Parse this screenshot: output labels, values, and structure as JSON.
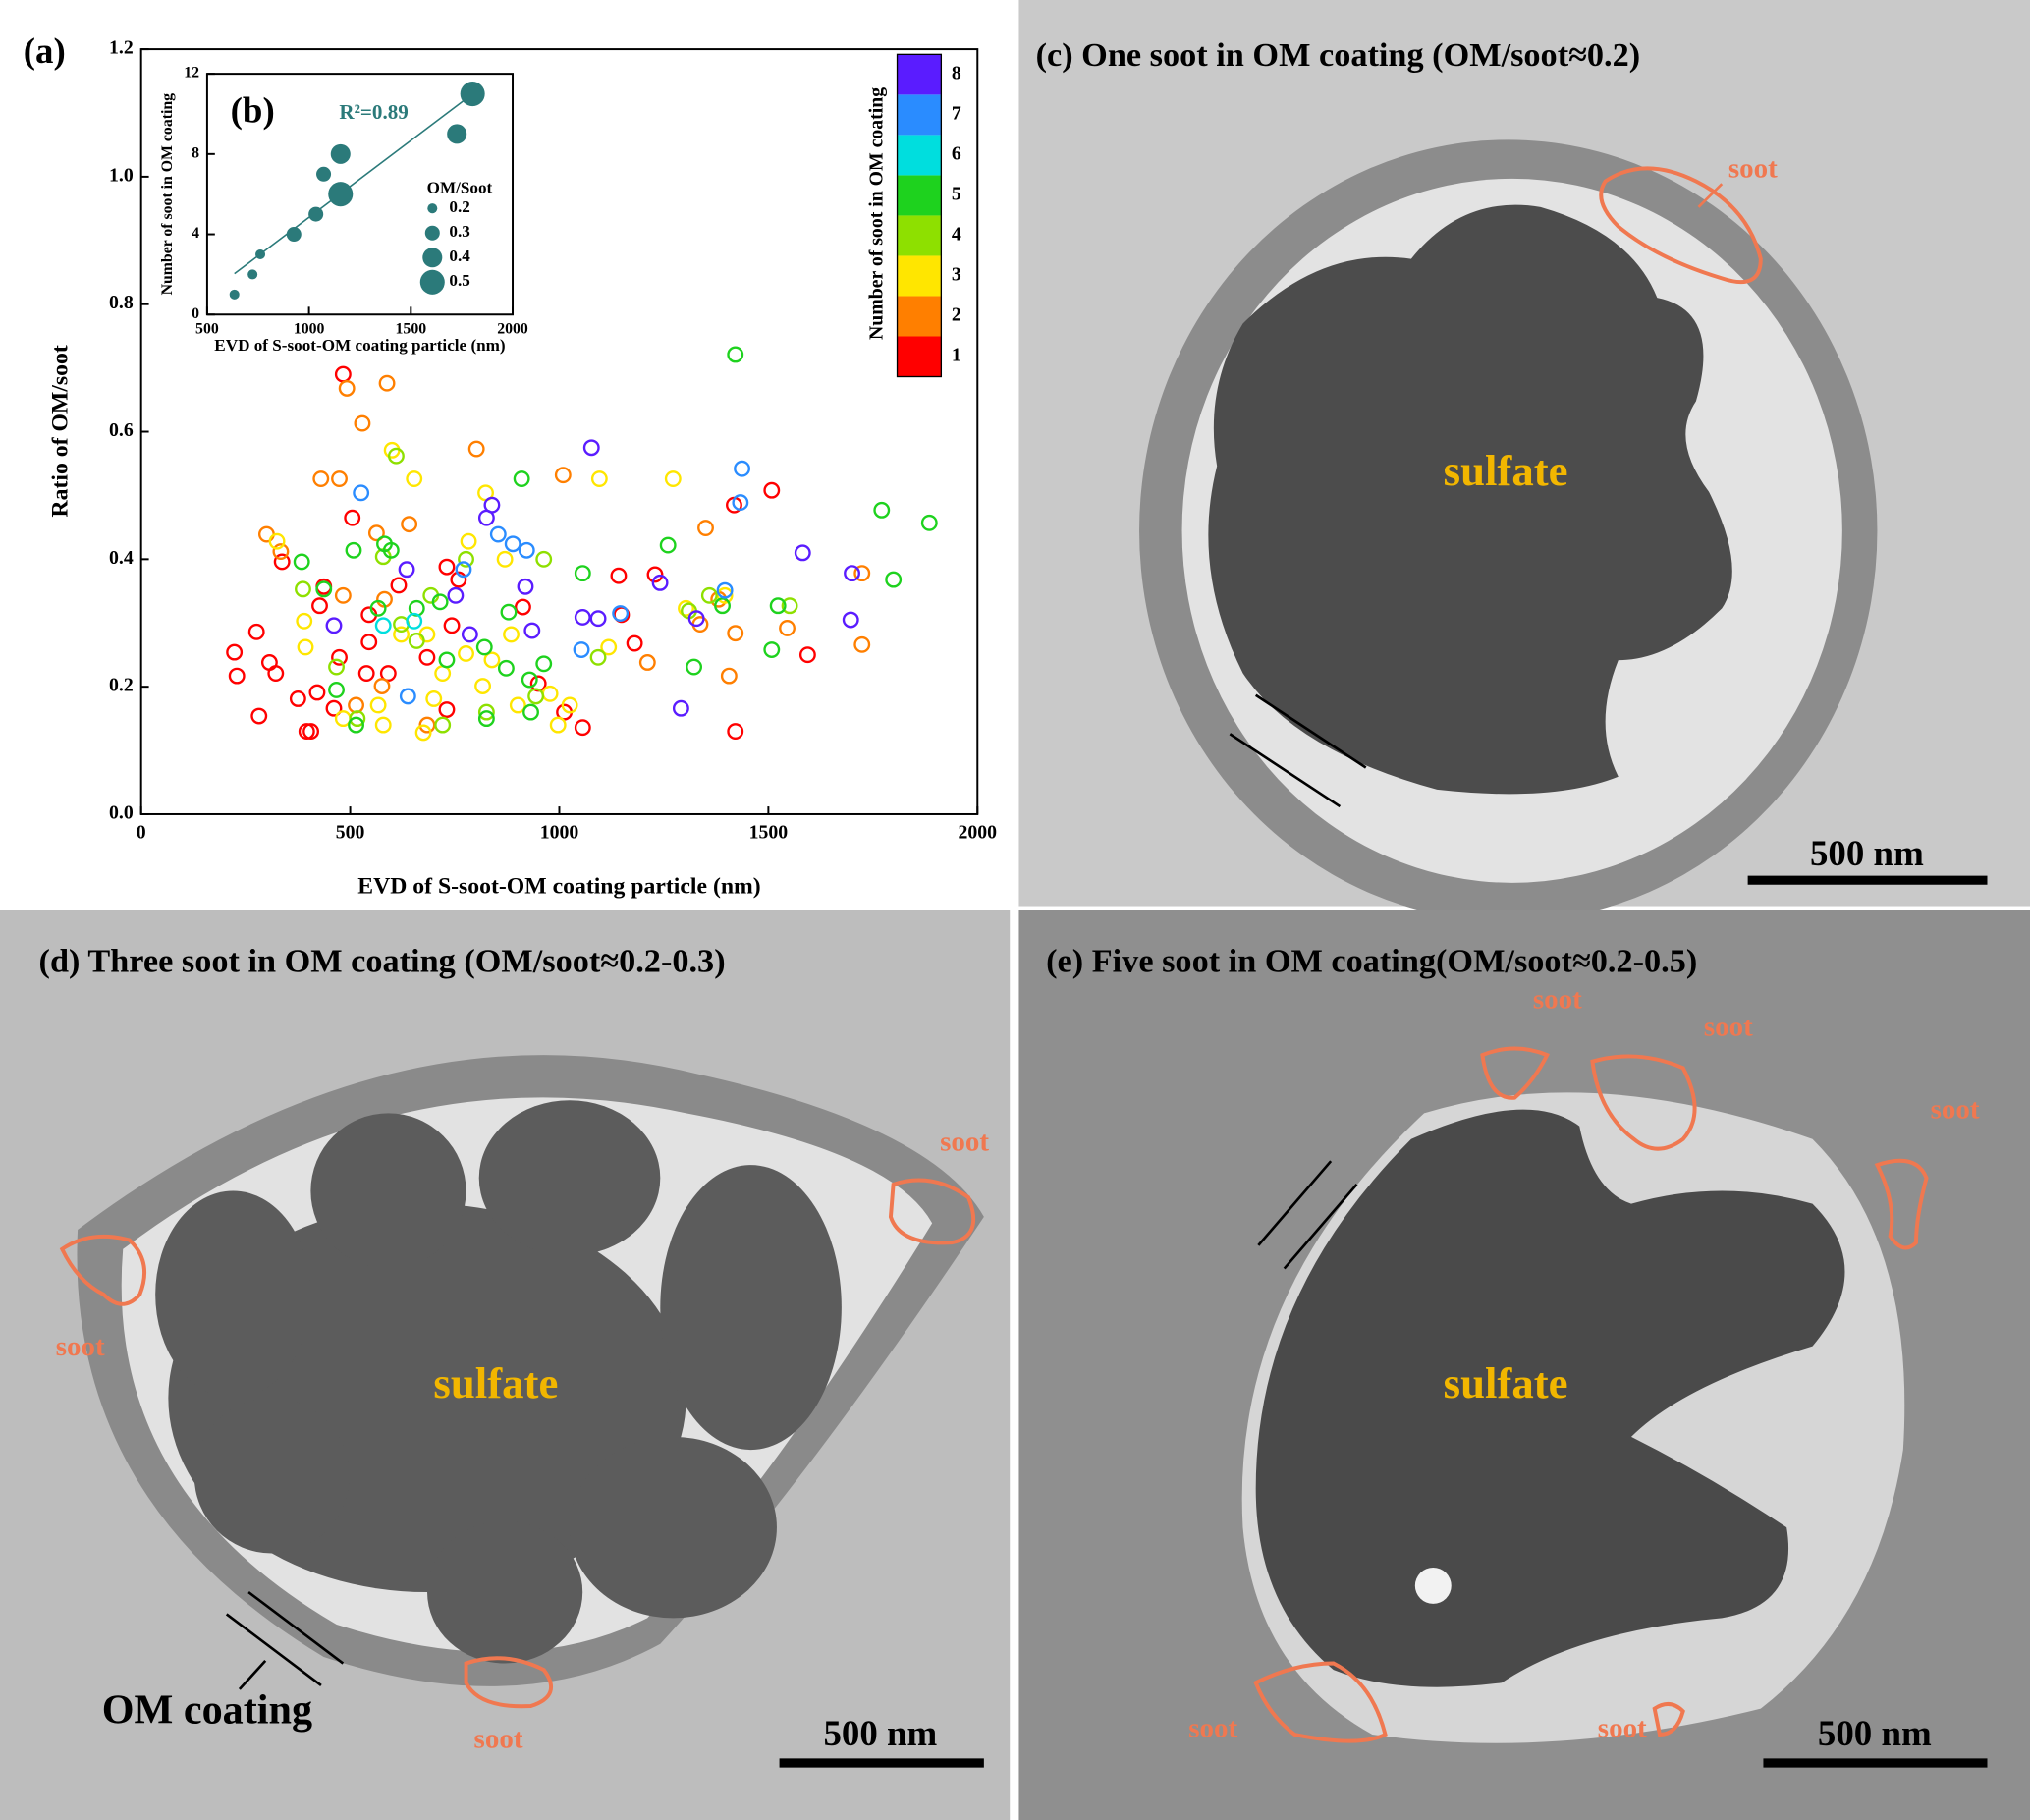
{
  "chart_data": [
    {
      "type": "scatter",
      "panel_label": "(a)",
      "x_label": "EVD of S-soot-OM coating particle (nm)",
      "y_label": "Ratio of OM/soot",
      "colorbar_label": "Number of soot in OM coating",
      "xlim": [
        0,
        2000
      ],
      "ylim": [
        0,
        1.2
      ],
      "xticks": [
        0,
        500,
        1000,
        1500,
        2000
      ],
      "yticks": [
        {
          "value": 0,
          "label": "0.0"
        },
        0.2,
        0.4,
        0.6,
        0.8,
        {
          "value": 1,
          "label": "1.0"
        },
        1.2
      ],
      "series": [
        {
          "name": "1",
          "color": "#ff0000",
          "x": [
            223,
            229,
            276,
            282,
            307,
            337,
            322,
            375,
            406,
            421,
            461,
            483,
            474,
            427,
            437,
            505,
            545,
            545,
            396,
            539,
            591,
            616,
            731,
            743,
            759,
            913,
            950,
            1142,
            1149,
            1229,
            1418,
            1421,
            1508,
            1594,
            1056,
            1012,
            1180,
            731,
            684
          ],
          "values": [
            0.254,
            0.217,
            0.286,
            0.154,
            0.238,
            0.396,
            0.221,
            0.181,
            0.13,
            0.191,
            0.166,
            0.69,
            0.246,
            0.327,
            0.357,
            0.465,
            0.313,
            0.27,
            0.13,
            0.221,
            0.221,
            0.359,
            0.388,
            0.296,
            0.368,
            0.325,
            0.205,
            0.374,
            0.313,
            0.376,
            0.485,
            0.13,
            0.508,
            0.25,
            0.136,
            0.16,
            0.268,
            0.164,
            0.246
          ]
        },
        {
          "name": "2",
          "color": "#ff7f00",
          "x": [
            492,
            588,
            529,
            802,
            1009,
            1350,
            1724,
            1724,
            1545,
            300,
            334,
            430,
            474,
            563,
            582,
            641,
            1337,
            1381,
            1211,
            1421,
            1406,
            514,
            576,
            684,
            483
          ],
          "values": [
            0.668,
            0.676,
            0.613,
            0.573,
            0.532,
            0.449,
            0.378,
            0.266,
            0.292,
            0.439,
            0.412,
            0.526,
            0.526,
            0.441,
            0.337,
            0.455,
            0.298,
            0.337,
            0.238,
            0.284,
            0.217,
            0.171,
            0.201,
            0.14,
            0.343
          ]
        },
        {
          "name": "3",
          "color": "#ffe600",
          "x": [
            600,
            325,
            390,
            653,
            783,
            824,
            870,
            1096,
            1272,
            1396,
            1303,
            978,
            1025,
            839,
            817,
            675,
            579,
            483,
            393,
            622,
            684,
            777,
            885,
            567,
            997,
            700,
            721,
            901,
            1118
          ],
          "values": [
            0.571,
            0.428,
            0.303,
            0.526,
            0.428,
            0.504,
            0.4,
            0.526,
            0.526,
            0.343,
            0.323,
            0.189,
            0.171,
            0.242,
            0.201,
            0.128,
            0.14,
            0.15,
            0.262,
            0.282,
            0.282,
            0.252,
            0.282,
            0.171,
            0.14,
            0.181,
            0.221,
            0.171,
            0.262
          ]
        },
        {
          "name": "4",
          "color": "#8ee000",
          "x": [
            610,
            387,
            579,
            693,
            777,
            963,
            1093,
            1310,
            1359,
            1551,
            622,
            721,
            517,
            826,
            944,
            659,
            467
          ],
          "values": [
            0.562,
            0.353,
            0.404,
            0.343,
            0.4,
            0.4,
            0.246,
            0.319,
            0.343,
            0.327,
            0.298,
            0.14,
            0.15,
            0.16,
            0.185,
            0.272,
            0.231
          ]
        },
        {
          "name": "5",
          "color": "#1ed21e",
          "x": [
            1421,
            384,
            437,
            508,
            582,
            598,
            910,
            1056,
            1260,
            1390,
            1523,
            1508,
            1771,
            1799,
            1885,
            1322,
            821,
            873,
            929,
            963,
            879,
            715,
            659,
            567,
            467,
            514,
            731,
            826,
            932
          ],
          "values": [
            0.721,
            0.396,
            0.353,
            0.414,
            0.424,
            0.414,
            0.526,
            0.378,
            0.422,
            0.327,
            0.327,
            0.258,
            0.477,
            0.368,
            0.457,
            0.231,
            0.262,
            0.229,
            0.211,
            0.236,
            0.317,
            0.333,
            0.323,
            0.323,
            0.195,
            0.14,
            0.242,
            0.15,
            0.16
          ]
        },
        {
          "name": "6",
          "color": "#00dede",
          "x": [
            579,
            653
          ],
          "values": [
            0.296,
            0.303
          ]
        },
        {
          "name": "7",
          "color": "#2a8cff",
          "x": [
            526,
            854,
            889,
            922,
            771,
            1146,
            1053,
            1437,
            1396,
            1433,
            638
          ],
          "values": [
            0.504,
            0.439,
            0.424,
            0.414,
            0.384,
            0.315,
            0.258,
            0.542,
            0.351,
            0.489,
            0.185
          ]
        },
        {
          "name": "8",
          "color": "#5a1cff",
          "x": [
            1077,
            826,
            839,
            919,
            935,
            786,
            752,
            635,
            461,
            1582,
            1700,
            1697,
            1291,
            1093,
            1056,
            1328,
            1241
          ],
          "values": [
            0.575,
            0.465,
            0.485,
            0.357,
            0.288,
            0.282,
            0.343,
            0.384,
            0.296,
            0.41,
            0.378,
            0.305,
            0.166,
            0.307,
            0.309,
            0.307,
            0.363
          ]
        }
      ]
    },
    {
      "type": "bubble",
      "panel_label": "(b)",
      "x_label": "EVD of S-soot-OM coating particle (nm)",
      "y_label": "Number of soot in OM coating",
      "annotation": "R²=0.89",
      "color": "#2b7a7a",
      "xlim": [
        500,
        2000
      ],
      "ylim": [
        0,
        12
      ],
      "xticks": [
        500,
        1000,
        1500,
        2000
      ],
      "yticks": [
        0,
        4,
        8,
        12
      ],
      "x": [
        634,
        723,
        761,
        926,
        1034,
        1072,
        1155,
        1155,
        1726,
        1803
      ],
      "values": [
        1,
        2,
        3,
        4,
        5,
        7,
        6,
        8,
        9,
        11
      ],
      "sizes": [
        0.2,
        0.2,
        0.2,
        0.3,
        0.3,
        0.3,
        0.5,
        0.4,
        0.4,
        0.5
      ],
      "size_legend": {
        "title": "OM/Soot",
        "values": [
          0.2,
          0.3,
          0.4,
          0.5
        ]
      }
    }
  ],
  "panels": [
    {
      "title": "(c) One soot in OM coating (OM/soot≈0.2)",
      "core": "sulfate",
      "soot_labels": [
        "soot"
      ],
      "scale_bar": "500 nm"
    },
    {
      "title": "(d) Three soot in OM coating (OM/soot≈0.2-0.3)",
      "core": "sulfate",
      "soot_labels": [
        "soot",
        "soot",
        "soot"
      ],
      "coating_label": "OM coating",
      "scale_bar": "500 nm"
    },
    {
      "title": "(e) Five soot in OM coating(OM/soot≈0.2-0.5)",
      "core": "sulfate",
      "soot_labels": [
        "soot",
        "soot",
        "soot",
        "soot",
        "soot"
      ],
      "scale_bar": "500 nm"
    }
  ]
}
